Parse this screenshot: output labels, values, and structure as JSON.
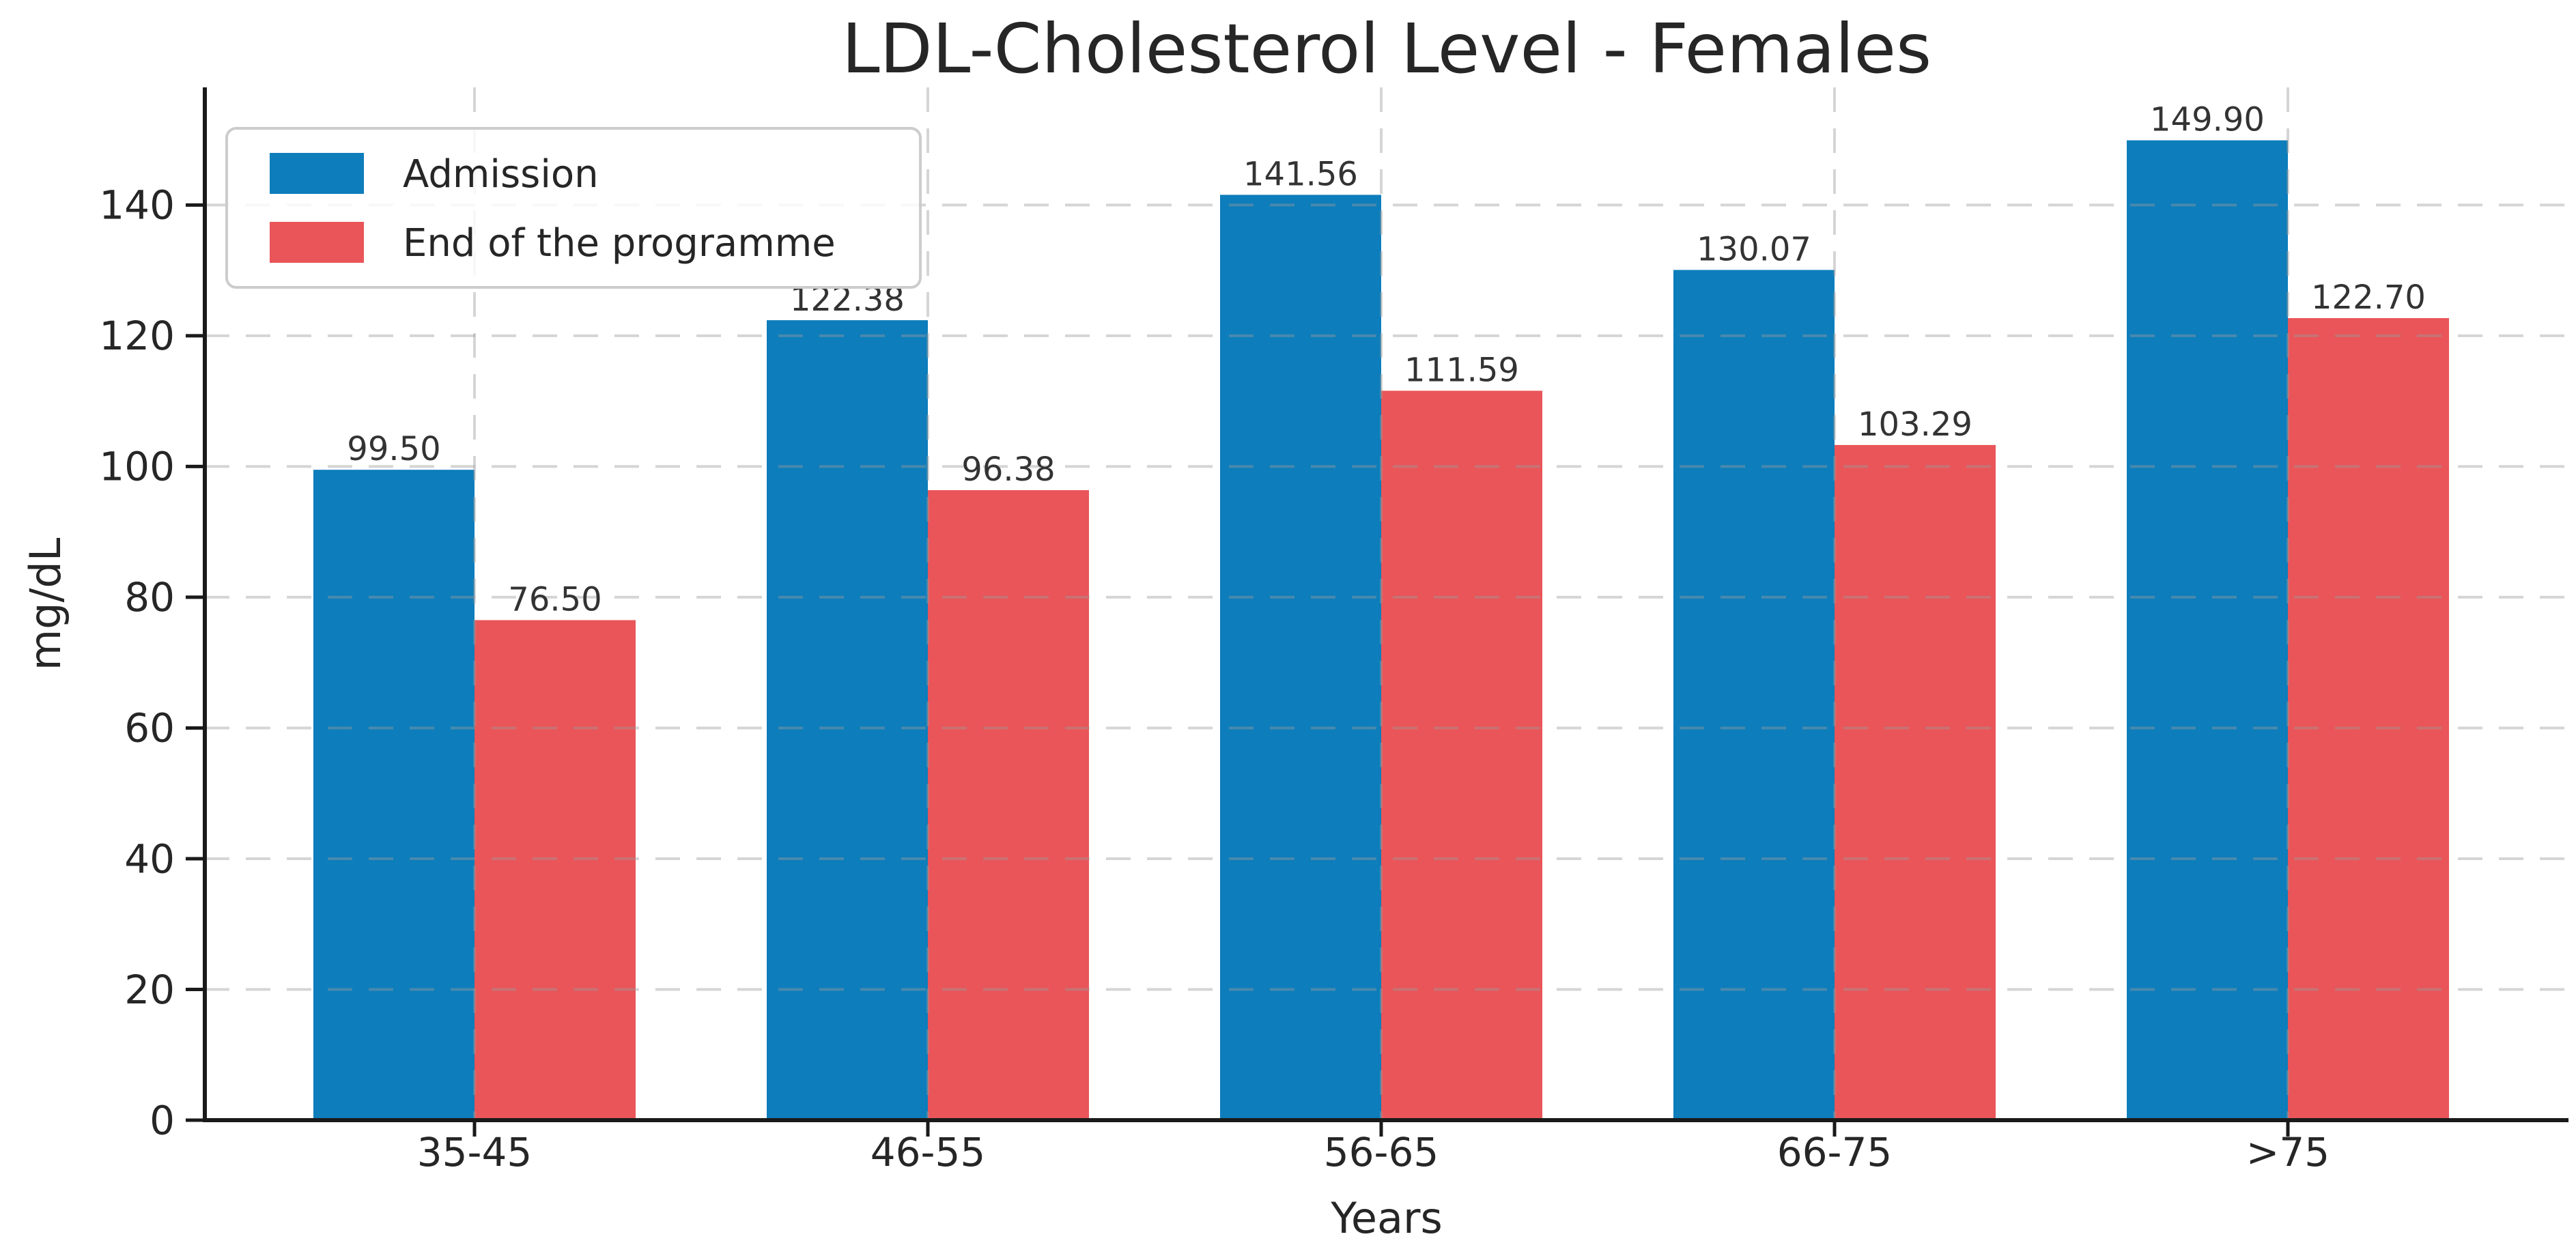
{
  "chart_data": {
    "type": "bar",
    "title": "LDL-Cholesterol Level - Females",
    "xlabel": "Years",
    "ylabel": "mg/dL",
    "categories": [
      "35-45",
      "46-55",
      "56-65",
      "66-75",
      ">75"
    ],
    "series": [
      {
        "name": "Admission",
        "color": "#0d7dbb",
        "values": [
          99.5,
          122.38,
          141.56,
          130.07,
          149.9
        ],
        "value_labels": [
          "99.50",
          "122.38",
          "141.56",
          "130.07",
          "149.90"
        ]
      },
      {
        "name": "End of the programme",
        "color": "#e95559",
        "values": [
          76.5,
          96.38,
          111.59,
          103.29,
          122.7
        ],
        "value_labels": [
          "76.50",
          "96.38",
          "111.59",
          "103.29",
          "122.70"
        ]
      }
    ],
    "ylim": [
      0,
      158
    ],
    "yticks": [
      0,
      20,
      40,
      60,
      80,
      100,
      120,
      140
    ],
    "grid": true,
    "grid_style": "dashed",
    "legend_position": "upper left",
    "styles": {
      "grid_color": "#9a9a9a",
      "spine_color": "#1a1a1a",
      "text_color": "#262626"
    }
  }
}
